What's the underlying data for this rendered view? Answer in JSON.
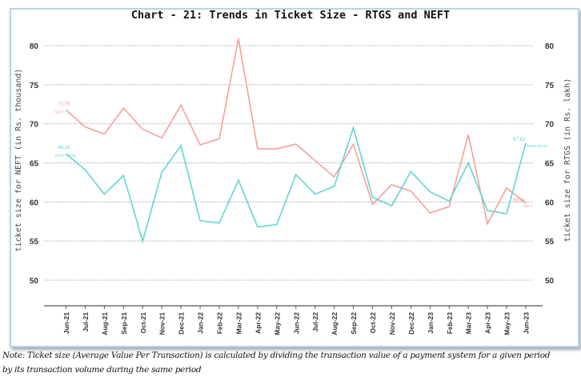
{
  "chart_data": {
    "type": "line",
    "title": "Chart - 21: Trends in Ticket Size - RTGS and NEFT",
    "ylabel_left": "ticket size for NEFT (in Rs. thousand)",
    "ylabel_right": "ticket size for RTGS (in Rs. lakh)",
    "ylim": [
      48,
      82
    ],
    "yticks": [
      50,
      55,
      60,
      65,
      70,
      75,
      80
    ],
    "grid": true,
    "categories": [
      "Jun-21",
      "Jul-21",
      "Aug-21",
      "Sep-21",
      "Oct-21",
      "Nov-21",
      "Dec-21",
      "Jan-22",
      "Feb-22",
      "Mar-22",
      "Apr-22",
      "May-22",
      "Jun-22",
      "Jul-22",
      "Aug-22",
      "Sep-22",
      "Oct-22",
      "Nov-22",
      "Dec-22",
      "Jan-23",
      "Feb-23",
      "Mar-23",
      "Apr-23",
      "May-23",
      "Jun-23"
    ],
    "series": [
      {
        "name": "NEFT",
        "axis": "left",
        "color": "#f4a09a",
        "values": [
          71.76,
          69.6,
          68.7,
          72.0,
          69.3,
          68.2,
          72.4,
          67.3,
          68.1,
          80.9,
          66.8,
          66.8,
          67.4,
          65.3,
          63.2,
          67.4,
          59.7,
          62.2,
          61.4,
          58.6,
          59.4,
          68.6,
          57.2,
          61.8,
          59.83
        ],
        "start_label": "71.76",
        "end_label": "59.83"
      },
      {
        "name": "RTGS (RHS)",
        "axis": "right",
        "color": "#5fd6d2",
        "values": [
          66.16,
          64.1,
          61.0,
          63.4,
          55.0,
          63.8,
          67.2,
          57.6,
          57.3,
          62.8,
          56.8,
          57.1,
          63.5,
          61.0,
          62.0,
          69.5,
          60.6,
          59.5,
          63.9,
          61.3,
          60.1,
          65.0,
          58.9,
          58.5,
          67.53
        ],
        "start_label": "66.16",
        "end_label": "67.53"
      }
    ]
  },
  "note": {
    "line1": "Note: Ticket size (Average Value Per Transaction) is calculated by dividing the transaction value of a payment system for a given period",
    "line2": "by its transaction volume during the same period"
  }
}
